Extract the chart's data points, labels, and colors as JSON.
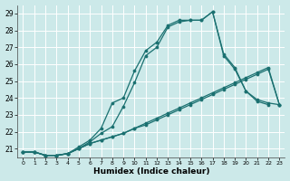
{
  "xlabel": "Humidex (Indice chaleur)",
  "bg_color": "#cce9e9",
  "grid_color": "#ffffff",
  "line_color": "#1a7070",
  "xlim": [
    -0.5,
    23.5
  ],
  "ylim": [
    20.5,
    29.5
  ],
  "xticks": [
    0,
    1,
    2,
    3,
    4,
    5,
    6,
    7,
    8,
    9,
    10,
    11,
    12,
    13,
    14,
    15,
    16,
    17,
    18,
    19,
    20,
    21,
    22,
    23
  ],
  "yticks": [
    21,
    22,
    23,
    24,
    25,
    26,
    27,
    28,
    29
  ],
  "series": [
    {
      "x": [
        0,
        1,
        2,
        3,
        4,
        5,
        6,
        7,
        8,
        9,
        10,
        11,
        12,
        13,
        14,
        15,
        16,
        17,
        18,
        19,
        20,
        21,
        22,
        23
      ],
      "y": [
        20.8,
        20.8,
        20.6,
        20.6,
        20.7,
        21.1,
        21.5,
        22.2,
        23.7,
        24.0,
        25.6,
        26.8,
        27.3,
        28.3,
        28.6,
        28.6,
        28.6,
        29.1,
        26.6,
        25.8,
        24.4,
        23.9,
        23.7,
        23.6
      ]
    },
    {
      "x": [
        0,
        1,
        2,
        3,
        4,
        5,
        6,
        7,
        8,
        9,
        10,
        11,
        12,
        13,
        14,
        15,
        16,
        17,
        18,
        19,
        20,
        21,
        22
      ],
      "y": [
        20.8,
        20.8,
        20.6,
        20.6,
        20.7,
        21.0,
        21.4,
        21.9,
        22.3,
        23.5,
        24.9,
        26.5,
        27.0,
        28.2,
        28.5,
        28.6,
        28.6,
        29.1,
        26.5,
        25.7,
        24.4,
        23.8,
        23.6
      ]
    },
    {
      "x": [
        0,
        1,
        2,
        3,
        4,
        5,
        6,
        7,
        8,
        9,
        10,
        11,
        12,
        13,
        14,
        15,
        16,
        17,
        18,
        19,
        20,
        21,
        22,
        23
      ],
      "y": [
        20.8,
        20.8,
        20.6,
        20.6,
        20.7,
        21.0,
        21.3,
        21.5,
        21.7,
        21.9,
        22.2,
        22.5,
        22.8,
        23.1,
        23.4,
        23.7,
        24.0,
        24.3,
        24.6,
        24.9,
        25.2,
        25.5,
        25.8,
        23.6
      ]
    },
    {
      "x": [
        0,
        1,
        2,
        3,
        4,
        5,
        6,
        7,
        8,
        9,
        10,
        11,
        12,
        13,
        14,
        15,
        16,
        17,
        18,
        19,
        20,
        21,
        22,
        23
      ],
      "y": [
        20.8,
        20.8,
        20.6,
        20.6,
        20.7,
        21.0,
        21.3,
        21.5,
        21.7,
        21.9,
        22.2,
        22.4,
        22.7,
        23.0,
        23.3,
        23.6,
        23.9,
        24.2,
        24.5,
        24.8,
        25.1,
        25.4,
        25.7,
        23.6
      ]
    }
  ]
}
